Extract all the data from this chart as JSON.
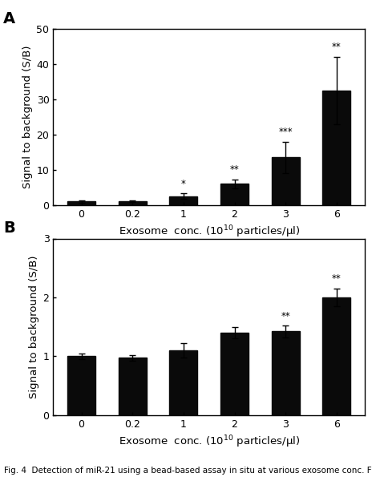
{
  "panel_A": {
    "label": "A",
    "categories": [
      "0",
      "0.2",
      "1",
      "2",
      "3",
      "6"
    ],
    "values": [
      1.0,
      1.1,
      2.5,
      6.0,
      13.5,
      32.5
    ],
    "errors": [
      0.3,
      0.3,
      0.8,
      1.3,
      4.5,
      9.5
    ],
    "significance": [
      "",
      "",
      "*",
      "**",
      "***",
      "**"
    ],
    "ylabel": "Signal to background (S/B)",
    "xlabel": "Exosome  conc. (10$^{10}$ particles/μl)",
    "ylim": [
      0,
      50
    ],
    "yticks": [
      0,
      10,
      20,
      30,
      40,
      50
    ]
  },
  "panel_B": {
    "label": "B",
    "categories": [
      "0",
      "0.2",
      "1",
      "2",
      "3",
      "6"
    ],
    "values": [
      1.0,
      0.97,
      1.1,
      1.4,
      1.42,
      2.0
    ],
    "errors": [
      0.05,
      0.05,
      0.12,
      0.1,
      0.1,
      0.15
    ],
    "significance": [
      "",
      "",
      "",
      "",
      "**",
      "**"
    ],
    "ylabel": "Signal to background (S/B)",
    "xlabel": "Exosome  conc. (10$^{10}$ particles/μl)",
    "ylim": [
      0,
      3
    ],
    "yticks": [
      0,
      1,
      2,
      3
    ]
  },
  "bar_color": "#0a0a0a",
  "bar_width": 0.55,
  "capsize": 3,
  "sig_fontsize": 8.5,
  "label_fontsize": 9.5,
  "tick_fontsize": 9,
  "panel_label_fontsize": 14,
  "caption_fontsize": 7.5
}
